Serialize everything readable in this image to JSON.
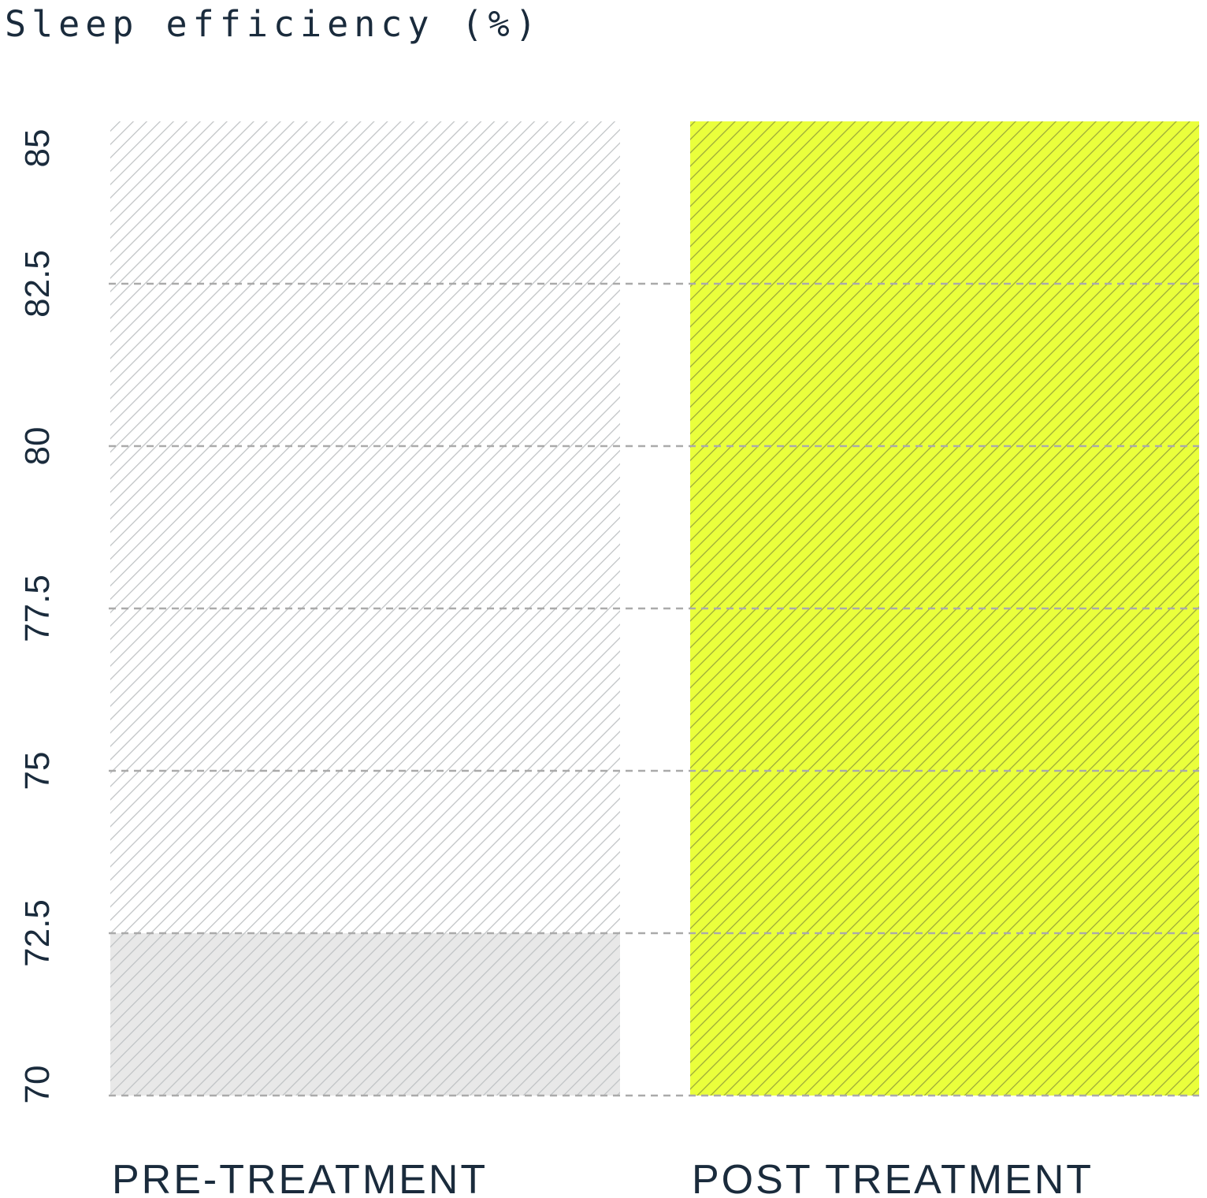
{
  "chart_data": {
    "type": "bar",
    "title": "Sleep efficiency (%)",
    "categories": [
      "PRE-TREATMENT",
      "POST TREATMENT"
    ],
    "series": [
      {
        "values": [
          72.5,
          85
        ]
      }
    ],
    "background_values": [
      85,
      85
    ],
    "ylim": [
      70,
      85
    ],
    "yticks": [
      "70",
      "72.5",
      "75",
      "77.5",
      "80",
      "82.5",
      "85"
    ],
    "ytick_values": [
      70,
      72.5,
      75,
      77.5,
      80,
      82.5,
      85
    ],
    "xlabel": "",
    "ylabel": "",
    "grid": true,
    "colors": {
      "pre_fill": "#e8e8e8",
      "pre_hatch": "#bfc2c4",
      "post_fill": "#eaff3c",
      "post_hatch": "#9aa83a",
      "grid": "#aaaaaa",
      "text": "#1a2b3c"
    }
  }
}
